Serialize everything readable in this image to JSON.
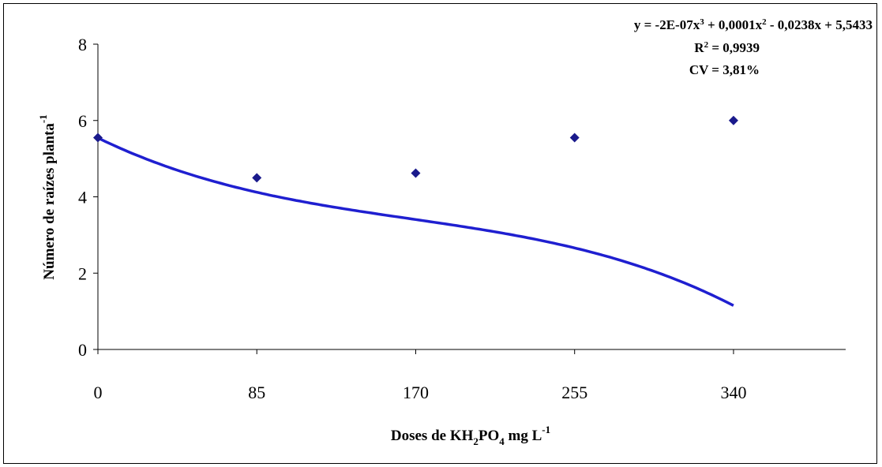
{
  "chart_data": {
    "type": "scatter",
    "title": "",
    "xlabel": {
      "parts": [
        "Doses de KH",
        "2",
        "PO",
        "4",
        " mg L",
        "-1"
      ]
    },
    "ylabel": {
      "text": "Número de raízes planta",
      "sup": "-1"
    },
    "x_ticks": [
      0,
      85,
      170,
      255,
      340
    ],
    "y_ticks": [
      0,
      2,
      4,
      6,
      8
    ],
    "xlim": [
      0,
      400
    ],
    "ylim": [
      0,
      8
    ],
    "grid": false,
    "legend": "none",
    "series": [
      {
        "points": [
          {
            "x": 0,
            "y": 5.55
          },
          {
            "x": 85,
            "y": 4.5
          },
          {
            "x": 170,
            "y": 4.62
          },
          {
            "x": 255,
            "y": 5.55
          },
          {
            "x": 340,
            "y": 6.0
          }
        ],
        "marker": "diamond",
        "color": "#1a1a8c"
      }
    ],
    "trendline": {
      "type": "polynomial-3",
      "coefficients": {
        "a3": -2e-07,
        "a2": 0.0001,
        "a1": -0.0238,
        "a0": 5.5433
      },
      "color": "#1f1fd0"
    },
    "annotations": {
      "equation": {
        "parts": [
          "y = -2E-07x",
          "3",
          " + 0,0001x",
          "2",
          " - 0,0238x + 5,5433"
        ]
      },
      "r2": {
        "parts": [
          "R",
          "2",
          " = 0,9939"
        ]
      },
      "cv": "CV = 3,81%"
    }
  }
}
